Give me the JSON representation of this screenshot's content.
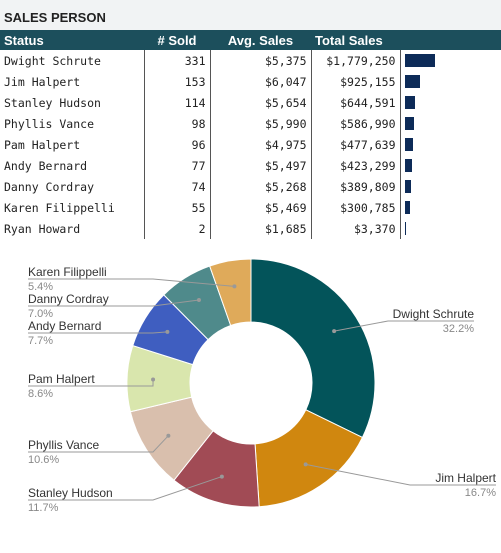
{
  "header": {
    "title": "SALES PERSON"
  },
  "table": {
    "columns": [
      "Status",
      "# Sold",
      "Avg. Sales",
      "Total Sales",
      ""
    ],
    "rows": [
      {
        "name": "Dwight Schrute",
        "sold": "331",
        "avg": "$5,375",
        "total": "$1,779,250",
        "bar_fraction": 1.0
      },
      {
        "name": "Jim Halpert",
        "sold": "153",
        "avg": "$6,047",
        "total": "$925,155",
        "bar_fraction": 0.52
      },
      {
        "name": "Stanley Hudson",
        "sold": "114",
        "avg": "$5,654",
        "total": "$644,591",
        "bar_fraction": 0.362
      },
      {
        "name": "Phyllis Vance",
        "sold": "98",
        "avg": "$5,990",
        "total": "$586,990",
        "bar_fraction": 0.33
      },
      {
        "name": "Pam Halpert",
        "sold": "96",
        "avg": "$4,975",
        "total": "$477,639",
        "bar_fraction": 0.268
      },
      {
        "name": "Andy Bernard",
        "sold": "77",
        "avg": "$5,497",
        "total": "$423,299",
        "bar_fraction": 0.238
      },
      {
        "name": "Danny Cordray",
        "sold": "74",
        "avg": "$5,268",
        "total": "$389,809",
        "bar_fraction": 0.219
      },
      {
        "name": "Karen Filippelli",
        "sold": "55",
        "avg": "$5,469",
        "total": "$300,785",
        "bar_fraction": 0.169
      },
      {
        "name": "Ryan Howard",
        "sold": "2",
        "avg": "$1,685",
        "total": "$3,370",
        "bar_fraction": 0.002
      }
    ],
    "bar_color": "#0d2b58",
    "header_color": "#1c4f5c"
  },
  "chart_data": {
    "type": "pie",
    "donut": true,
    "slices": [
      {
        "label": "Dwight Schrute",
        "percent_label": "32.2%",
        "value": 32.2,
        "color": "#03545a"
      },
      {
        "label": "Jim Halpert",
        "percent_label": "16.7%",
        "value": 16.7,
        "color": "#d0870f"
      },
      {
        "label": "Stanley Hudson",
        "percent_label": "11.7%",
        "value": 11.7,
        "color": "#a14b55"
      },
      {
        "label": "Phyllis Vance",
        "percent_label": "10.6%",
        "value": 10.6,
        "color": "#d9bfad"
      },
      {
        "label": "Pam Halpert",
        "percent_label": "8.6%",
        "value": 8.6,
        "color": "#d9e6ad"
      },
      {
        "label": "Andy Bernard",
        "percent_label": "7.7%",
        "value": 7.7,
        "color": "#3f5ec0"
      },
      {
        "label": "Danny Cordray",
        "percent_label": "7.0%",
        "value": 7.0,
        "color": "#4f8a8b"
      },
      {
        "label": "Karen Filippelli",
        "percent_label": "5.4%",
        "value": 5.4,
        "color": "#dfaa5a"
      }
    ]
  }
}
